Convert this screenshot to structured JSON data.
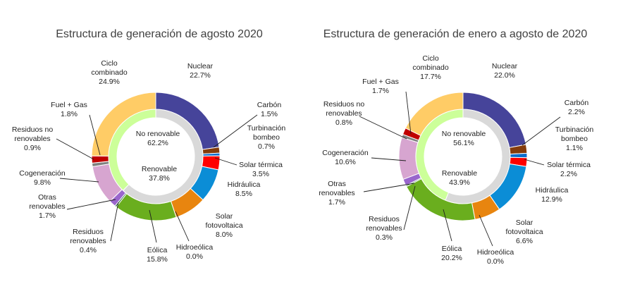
{
  "chart_data": [
    {
      "type": "pie",
      "title": "Estructura de generación de agosto 2020",
      "inner_ring": [
        {
          "label": "No renovable",
          "value": 62.2,
          "color": "#d9d9d9"
        },
        {
          "label": "Renovable",
          "value": 37.8,
          "color": "#ccff99"
        }
      ],
      "outer_ring": [
        {
          "label": "Nuclear",
          "value": 22.7,
          "color": "#46449a"
        },
        {
          "label": "Carbón",
          "value": 1.5,
          "color": "#843c0c"
        },
        {
          "label": "Turbinación bombeo",
          "value": 0.7,
          "color": "#0b6ecd"
        },
        {
          "label": "Solar térmica",
          "value": 3.5,
          "color": "#ff0000"
        },
        {
          "label": "Hidráulica",
          "value": 8.5,
          "color": "#0b8dd6"
        },
        {
          "label": "Solar fotovoltaica",
          "value": 8.0,
          "color": "#e8850f"
        },
        {
          "label": "Hidroeólica",
          "value": 0.0,
          "color": "#2f5597"
        },
        {
          "label": "Eólica",
          "value": 15.8,
          "color": "#6aae1e"
        },
        {
          "label": "Residuos renovables",
          "value": 0.4,
          "color": "#1f6e2f"
        },
        {
          "label": "Otras renovables",
          "value": 1.7,
          "color": "#9966cc"
        },
        {
          "label": "Cogeneración",
          "value": 9.8,
          "color": "#d7a5d0"
        },
        {
          "label": "Residuos no renovables",
          "value": 0.9,
          "color": "#7f7f7f"
        },
        {
          "label": "Fuel + Gas",
          "value": 1.8,
          "color": "#c00000"
        },
        {
          "label": "Ciclo combinado",
          "value": 24.9,
          "color": "#ffcc66"
        }
      ]
    },
    {
      "type": "pie",
      "title": "Estructura de generación de enero a agosto de 2020",
      "inner_ring": [
        {
          "label": "No renovable",
          "value": 56.1,
          "color": "#d9d9d9"
        },
        {
          "label": "Renovable",
          "value": 43.9,
          "color": "#ccff99"
        }
      ],
      "outer_ring": [
        {
          "label": "Nuclear",
          "value": 22.0,
          "color": "#46449a"
        },
        {
          "label": "Carbón",
          "value": 2.2,
          "color": "#843c0c"
        },
        {
          "label": "Turbinación bombeo",
          "value": 1.1,
          "color": "#0b6ecd"
        },
        {
          "label": "Solar térmica",
          "value": 2.2,
          "color": "#ff0000"
        },
        {
          "label": "Hidráulica",
          "value": 12.9,
          "color": "#0b8dd6"
        },
        {
          "label": "Solar fotovoltaica",
          "value": 6.6,
          "color": "#e8850f"
        },
        {
          "label": "Hidroeólica",
          "value": 0.0,
          "color": "#2f5597"
        },
        {
          "label": "Eólica",
          "value": 20.2,
          "color": "#6aae1e"
        },
        {
          "label": "Residuos renovables",
          "value": 0.3,
          "color": "#1f6e2f"
        },
        {
          "label": "Otras renovables",
          "value": 1.7,
          "color": "#9966cc"
        },
        {
          "label": "Cogeneración",
          "value": 10.6,
          "color": "#d7a5d0"
        },
        {
          "label": "Residuos no renovables",
          "value": 0.8,
          "color": "#7f7f7f"
        },
        {
          "label": "Fuel + Gas",
          "value": 1.7,
          "color": "#c00000"
        },
        {
          "label": "Ciclo combinado",
          "value": 17.7,
          "color": "#ffcc66"
        }
      ]
    }
  ]
}
